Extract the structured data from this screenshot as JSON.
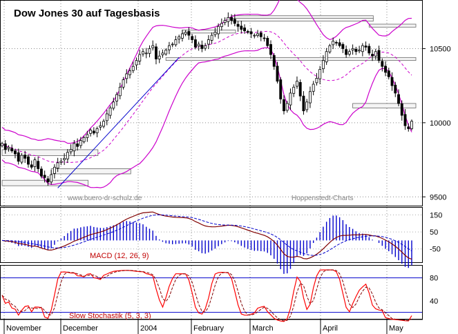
{
  "chart_data": {
    "type": "candlestick",
    "title": "Dow Jones 30 auf Tagesbasis",
    "watermark_left": "www.buero-dr-schulz.de",
    "watermark_right": "Hoppenstedt-Charts",
    "x_labels": [
      "November",
      "December",
      "2004",
      "February",
      "March",
      "April",
      "May"
    ],
    "price_panel": {
      "y_ticks": [
        9500,
        10000,
        10500
      ],
      "ylim": [
        9450,
        10800
      ],
      "grid": "dotted",
      "bollinger_color": "#cc00cc",
      "support_resistance_boxes": [
        {
          "x_start": 0,
          "x_end": 28,
          "y_low": 9778,
          "y_high": 9818
        },
        {
          "x_start": 0,
          "x_end": 25,
          "y_low": 9575,
          "y_high": 9612
        },
        {
          "x_start": 15,
          "x_end": 38,
          "y_low": 9655,
          "y_high": 9690
        },
        {
          "x_start": 55,
          "x_end": 70,
          "y_low": 10605,
          "y_high": 10625
        },
        {
          "x_start": 70,
          "x_end": 112,
          "y_low": 10702,
          "y_high": 10722
        },
        {
          "x_start": 70,
          "x_end": 112,
          "y_low": 10685,
          "y_high": 10705
        },
        {
          "x_start": 112,
          "x_end": 145,
          "y_low": 10645,
          "y_high": 10665
        },
        {
          "x_start": 50,
          "x_end": 157,
          "y_low": 10420,
          "y_high": 10440
        },
        {
          "x_start": 107,
          "x_end": 157,
          "y_low": 10100,
          "y_high": 10130
        }
      ],
      "trendline": {
        "x1": 17,
        "y1": 9560,
        "x2": 54,
        "y2": 10440
      }
    },
    "macd_panel": {
      "label": "MACD (12, 26, 9)",
      "y_ticks": [
        150,
        50,
        -50
      ],
      "ylim": [
        -120,
        180
      ],
      "macd_color": "#800000",
      "signal_color": "#0000cc",
      "histogram_color": "#0000cc"
    },
    "stoch_panel": {
      "label": "Slow Stochastik (5, 3, 3)",
      "y_ticks": [
        80,
        40
      ],
      "ylim": [
        10,
        100
      ],
      "levels": [
        80,
        20
      ],
      "k_color": "#ff0000",
      "d_color": "#800000"
    },
    "closes": [
      9860,
      9820,
      9835,
      9810,
      9790,
      9740,
      9780,
      9760,
      9720,
      9700,
      9750,
      9690,
      9640,
      9630,
      9600,
      9650,
      9700,
      9730,
      9740,
      9760,
      9800,
      9820,
      9860,
      9840,
      9880,
      9900,
      9920,
      9950,
      9930,
      9960,
      9980,
      10010,
      10060,
      10100,
      10140,
      10190,
      10240,
      10290,
      10330,
      10350,
      10380,
      10420,
      10460,
      10480,
      10470,
      10500,
      10520,
      10430,
      10450,
      10470,
      10490,
      10520,
      10530,
      10560,
      10580,
      10600,
      10610,
      10590,
      10560,
      10510,
      10530,
      10500,
      10520,
      10560,
      10590,
      10610,
      10650,
      10670,
      10690,
      10710,
      10690,
      10670,
      10650,
      10630,
      10620,
      10610,
      10600,
      10590,
      10600,
      10580,
      10570,
      10520,
      10460,
      10380,
      10280,
      10160,
      10080,
      10130,
      10200,
      10240,
      10280,
      10180,
      10080,
      10140,
      10210,
      10260,
      10300,
      10360,
      10420,
      10480,
      10520,
      10550,
      10540,
      10520,
      10500,
      10460,
      10480,
      10500,
      10480,
      10490,
      10520,
      10510,
      10470,
      10450,
      10480,
      10420,
      10380,
      10340,
      10310,
      10250,
      10200,
      10130,
      10050,
      9980,
      9960,
      10010
    ]
  }
}
